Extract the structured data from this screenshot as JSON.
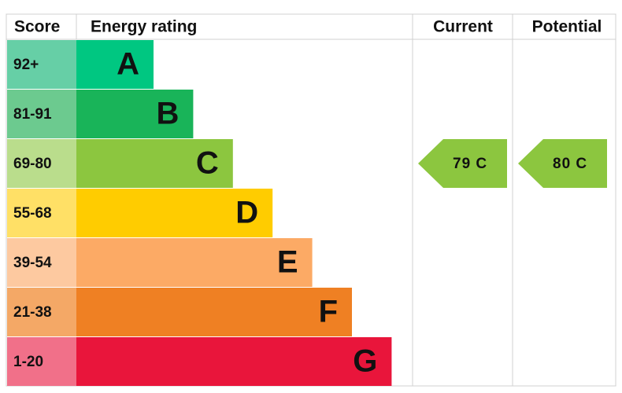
{
  "header": {
    "score": "Score",
    "rating": "Energy rating",
    "current": "Current",
    "potential": "Potential"
  },
  "bands": [
    {
      "score": "92+",
      "letter": "A",
      "color": "#00c781",
      "score_color": "#66cfa6"
    },
    {
      "score": "81-91",
      "letter": "B",
      "color": "#19b459",
      "score_color": "#6cca8f"
    },
    {
      "score": "69-80",
      "letter": "C",
      "color": "#8cc63f",
      "score_color": "#badd8c"
    },
    {
      "score": "55-68",
      "letter": "D",
      "color": "#ffcc00",
      "score_color": "#ffe066"
    },
    {
      "score": "39-54",
      "letter": "E",
      "color": "#fcaa65",
      "score_color": "#fdc9a0"
    },
    {
      "score": "21-38",
      "letter": "F",
      "color": "#ef8023",
      "score_color": "#f4a866"
    },
    {
      "score": "1-20",
      "letter": "G",
      "color": "#e9153b",
      "score_color": "#f17089"
    }
  ],
  "current": {
    "label": "79 C",
    "color": "#8cc63f"
  },
  "potential": {
    "label": "80 C",
    "color": "#8cc63f"
  }
}
